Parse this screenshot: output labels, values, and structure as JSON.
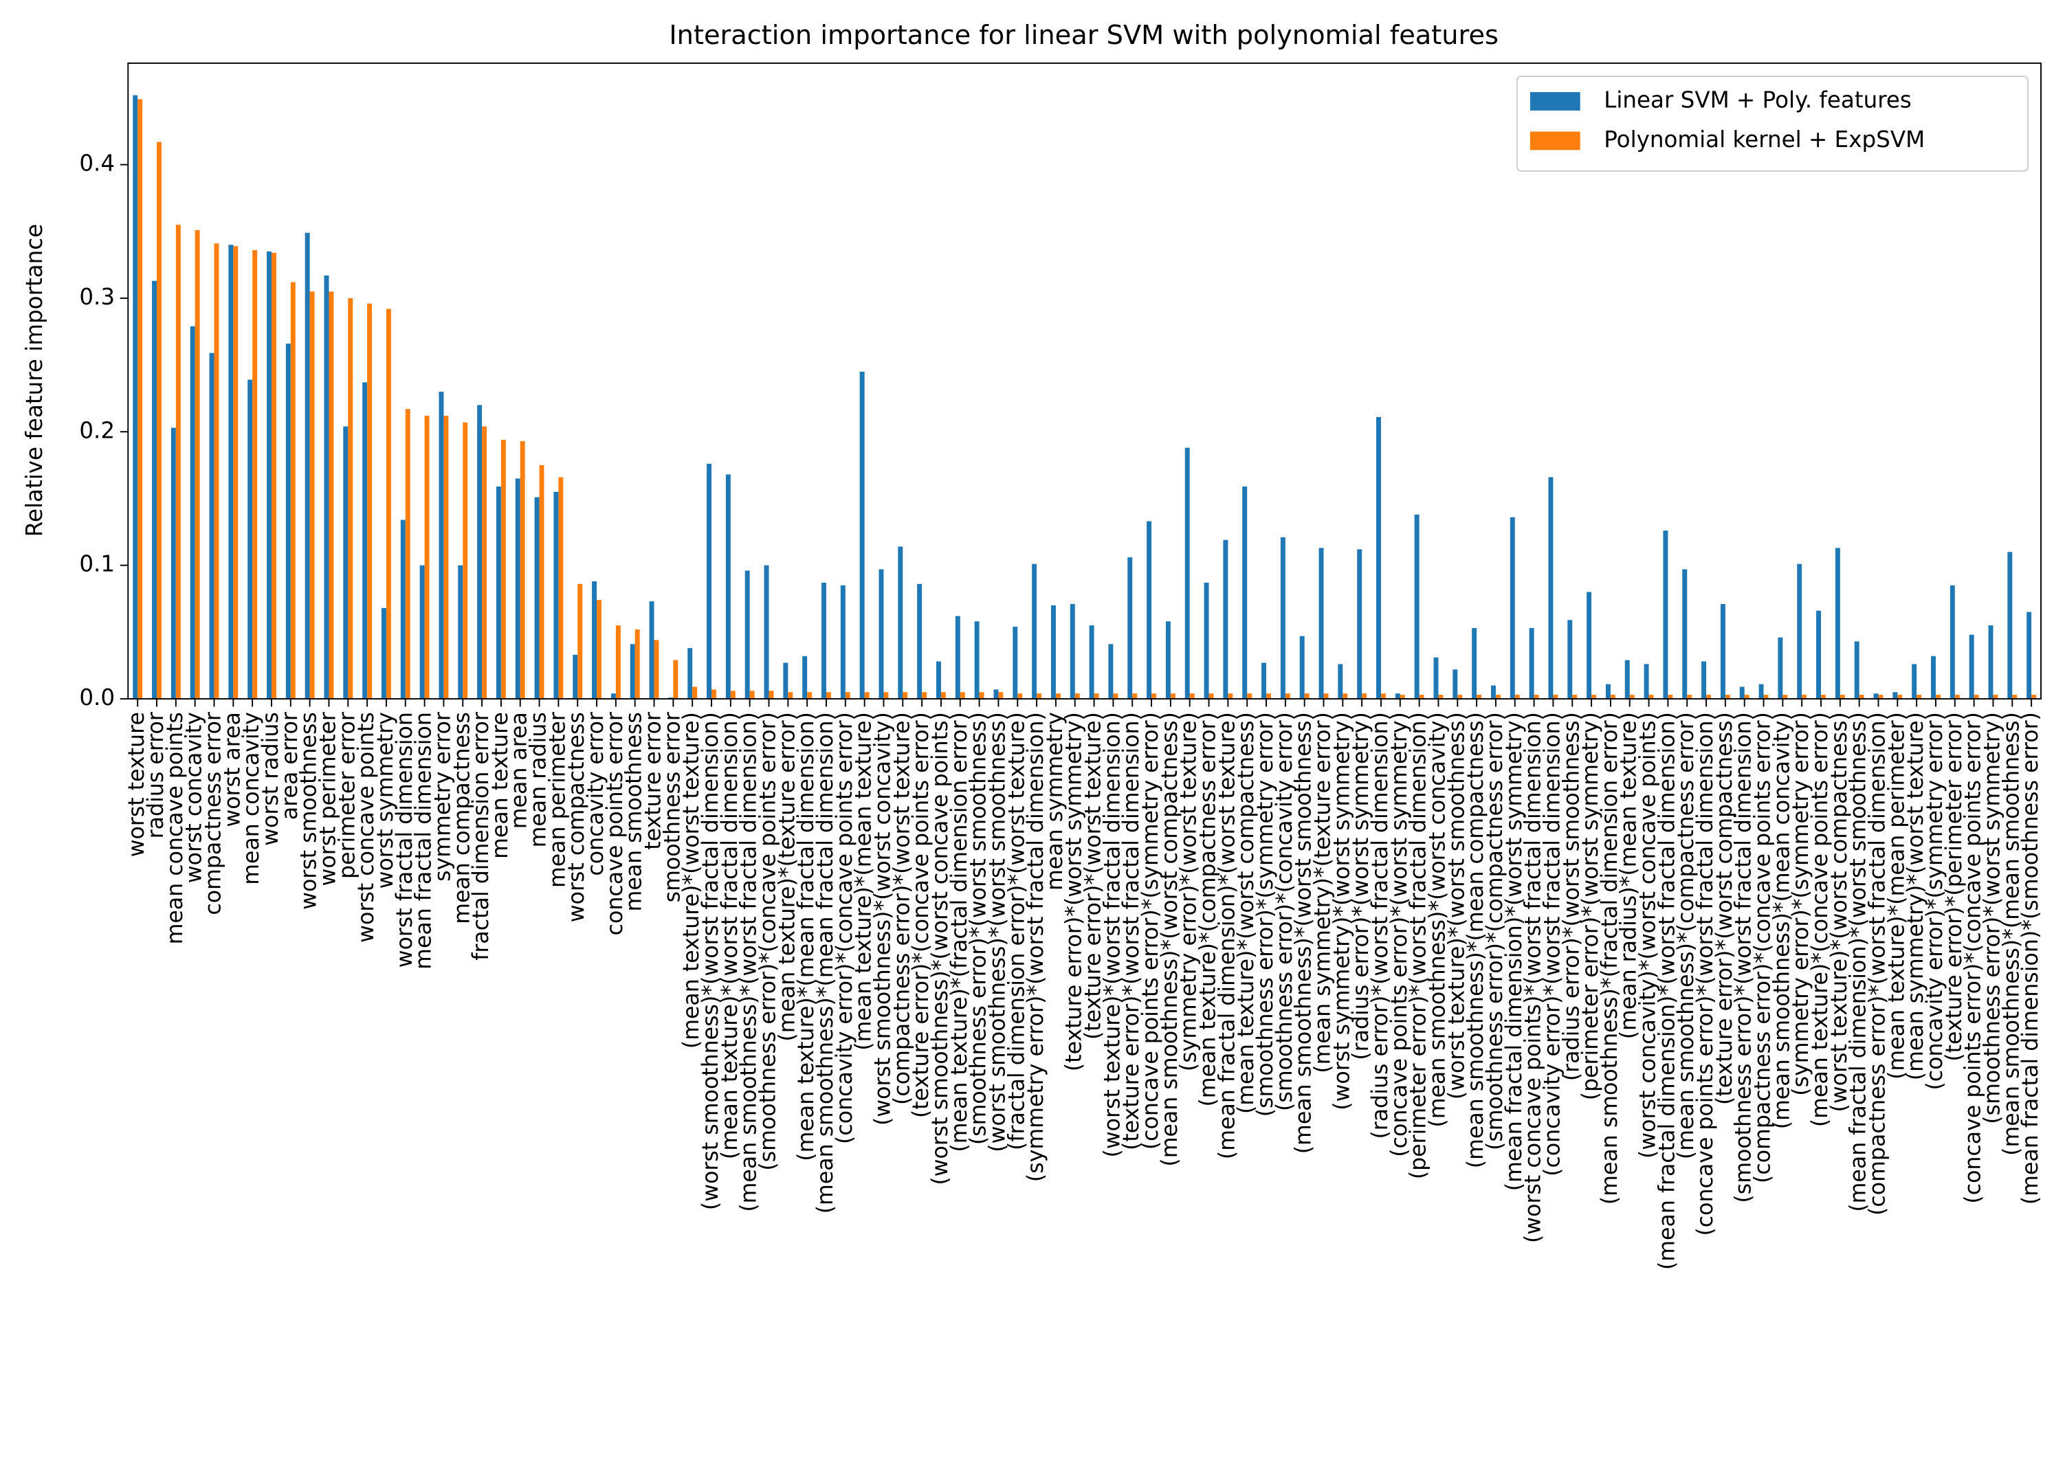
{
  "chart_data": {
    "type": "bar",
    "title": "Interaction importance for linear SVM with polynomial features",
    "y_label": "Relative feature importance",
    "categories": [
      "worst texture",
      "radius error",
      "mean concave points",
      "worst concavity",
      "compactness error",
      "worst area",
      "mean concavity",
      "worst radius",
      "area error",
      "worst smoothness",
      "worst perimeter",
      "perimeter error",
      "worst concave points",
      "worst symmetry",
      "worst fractal dimension",
      "mean fractal dimension",
      "symmetry error",
      "mean compactness",
      "fractal dimension error",
      "mean texture",
      "mean area",
      "mean radius",
      "mean perimeter",
      "worst compactness",
      "concavity error",
      "concave points error",
      "mean smoothness",
      "texture error",
      "smoothness error",
      "(mean texture)*(worst texture)",
      "(worst smoothness)*(worst fractal dimension)",
      "(mean texture)*(worst fractal dimension)",
      "(mean smoothness)*(worst fractal dimension)",
      "(smoothness error)*(concave points error)",
      "(mean texture)*(texture error)",
      "(mean texture)*(mean fractal dimension)",
      "(mean smoothness)*(mean fractal dimension)",
      "(concavity error)*(concave points error)",
      "(mean texture)*(mean texture)",
      "(worst smoothness)*(worst concavity)",
      "(compactness error)*(worst texture)",
      "(texture error)*(concave points error)",
      "(worst smoothness)*(worst concave points)",
      "(mean texture)*(fractal dimension error)",
      "(smoothness error)*(worst smoothness)",
      "(worst smoothness)*(worst smoothness)",
      "(fractal dimension error)*(worst texture)",
      "(symmetry error)*(worst fractal dimension)",
      "mean symmetry",
      "(texture error)*(worst symmetry)",
      "(texture error)*(worst texture)",
      "(worst texture)*(worst fractal dimension)",
      "(texture error)*(worst fractal dimension)",
      "(concave points error)*(symmetry error)",
      "(mean smoothness)*(worst compactness)",
      "(symmetry error)*(worst texture)",
      "(mean texture)*(compactness error)",
      "(mean fractal dimension)*(worst texture)",
      "(mean texture)*(worst compactness)",
      "(smoothness error)*(symmetry error)",
      "(smoothness error)*(concavity error)",
      "(mean smoothness)*(worst smoothness)",
      "(mean symmetry)*(texture error)",
      "(worst symmetry)*(worst symmetry)",
      "(radius error)*(worst symmetry)",
      "(radius error)*(worst fractal dimension)",
      "(concave points error)*(worst symmetry)",
      "(perimeter error)*(worst fractal dimension)",
      "(mean smoothness)*(worst concavity)",
      "(worst texture)*(worst smoothness)",
      "(mean smoothness)*(mean compactness)",
      "(smoothness error)*(compactness error)",
      "(mean fractal dimension)*(worst symmetry)",
      "(worst concave points)*(worst fractal dimension)",
      "(concavity error)*(worst fractal dimension)",
      "(radius error)*(worst smoothness)",
      "(perimeter error)*(worst symmetry)",
      "(mean smoothness)*(fractal dimension error)",
      "(mean radius)*(mean texture)",
      "(worst concavity)*(worst concave points)",
      "(mean fractal dimension)*(worst fractal dimension)",
      "(mean smoothness)*(compactness error)",
      "(concave points error)*(worst fractal dimension)",
      "(texture error)*(worst compactness)",
      "(smoothness error)*(worst fractal dimension)",
      "(compactness error)*(concave points error)",
      "(mean smoothness)*(mean concavity)",
      "(symmetry error)*(symmetry error)",
      "(mean texture)*(concave points error)",
      "(worst texture)*(worst compactness)",
      "(mean fractal dimension)*(worst smoothness)",
      "(compactness error)*(worst fractal dimension)",
      "(mean texture)*(mean perimeter)",
      "(mean symmetry)*(worst texture)",
      "(concavity error)*(symmetry error)",
      "(texture error)*(perimeter error)",
      "(concave points error)*(concave points error)",
      "(smoothness error)*(worst symmetry)",
      "(mean smoothness)*(mean smoothness)",
      "(mean fractal dimension)*(smoothness error)"
    ],
    "series": [
      {
        "name": "Linear SVM + Poly. features",
        "color": "#1f77b4",
        "values": [
          0.452,
          0.313,
          0.203,
          0.279,
          0.259,
          0.34,
          0.239,
          0.335,
          0.266,
          0.349,
          0.317,
          0.204,
          0.237,
          0.068,
          0.134,
          0.1,
          0.23,
          0.1,
          0.22,
          0.159,
          0.165,
          0.151,
          0.155,
          0.033,
          0.088,
          0.004,
          0.041,
          0.073,
          0.001,
          0.038,
          0.176,
          0.168,
          0.096,
          0.1,
          0.027,
          0.032,
          0.087,
          0.085,
          0.245,
          0.097,
          0.114,
          0.086,
          0.028,
          0.062,
          0.058,
          0.007,
          0.054,
          0.101,
          0.07,
          0.071,
          0.055,
          0.041,
          0.106,
          0.133,
          0.058,
          0.188,
          0.087,
          0.119,
          0.159,
          0.027,
          0.121,
          0.047,
          0.113,
          0.026,
          0.112,
          0.211,
          0.004,
          0.138,
          0.031,
          0.022,
          0.053,
          0.01,
          0.136,
          0.053,
          0.166,
          0.059,
          0.08,
          0.011,
          0.029,
          0.026,
          0.126,
          0.097,
          0.028,
          0.071,
          0.009,
          0.011,
          0.046,
          0.101,
          0.066,
          0.113,
          0.043,
          0.004,
          0.005,
          0.026,
          0.032,
          0.085,
          0.048,
          0.055,
          0.11,
          0.065
        ]
      },
      {
        "name": "Polynomial kernel + ExpSVM",
        "color": "#ff7f0e",
        "values": [
          0.449,
          0.417,
          0.355,
          0.351,
          0.341,
          0.339,
          0.336,
          0.334,
          0.312,
          0.305,
          0.305,
          0.3,
          0.296,
          0.292,
          0.217,
          0.212,
          0.212,
          0.207,
          0.204,
          0.194,
          0.193,
          0.175,
          0.166,
          0.086,
          0.074,
          0.055,
          0.052,
          0.044,
          0.029,
          0.009,
          0.007,
          0.006,
          0.006,
          0.006,
          0.005,
          0.005,
          0.005,
          0.005,
          0.005,
          0.005,
          0.005,
          0.005,
          0.005,
          0.005,
          0.005,
          0.005,
          0.004,
          0.004,
          0.004,
          0.004,
          0.004,
          0.004,
          0.004,
          0.004,
          0.004,
          0.004,
          0.004,
          0.004,
          0.004,
          0.004,
          0.004,
          0.004,
          0.004,
          0.004,
          0.004,
          0.004,
          0.003,
          0.003,
          0.003,
          0.003,
          0.003,
          0.003,
          0.003,
          0.003,
          0.003,
          0.003,
          0.003,
          0.003,
          0.003,
          0.003,
          0.003,
          0.003,
          0.003,
          0.003,
          0.003,
          0.003,
          0.003,
          0.003,
          0.003,
          0.003,
          0.003,
          0.003,
          0.003,
          0.003,
          0.003,
          0.003,
          0.003,
          0.003,
          0.003,
          0.003
        ]
      }
    ],
    "ylim": [
      0,
      0.476
    ],
    "yticks": [
      0.0,
      0.1,
      0.2,
      0.3,
      0.4
    ],
    "ytick_labels": [
      "0.0",
      "0.1",
      "0.2",
      "0.3",
      "0.4"
    ],
    "legend": "upper right"
  }
}
